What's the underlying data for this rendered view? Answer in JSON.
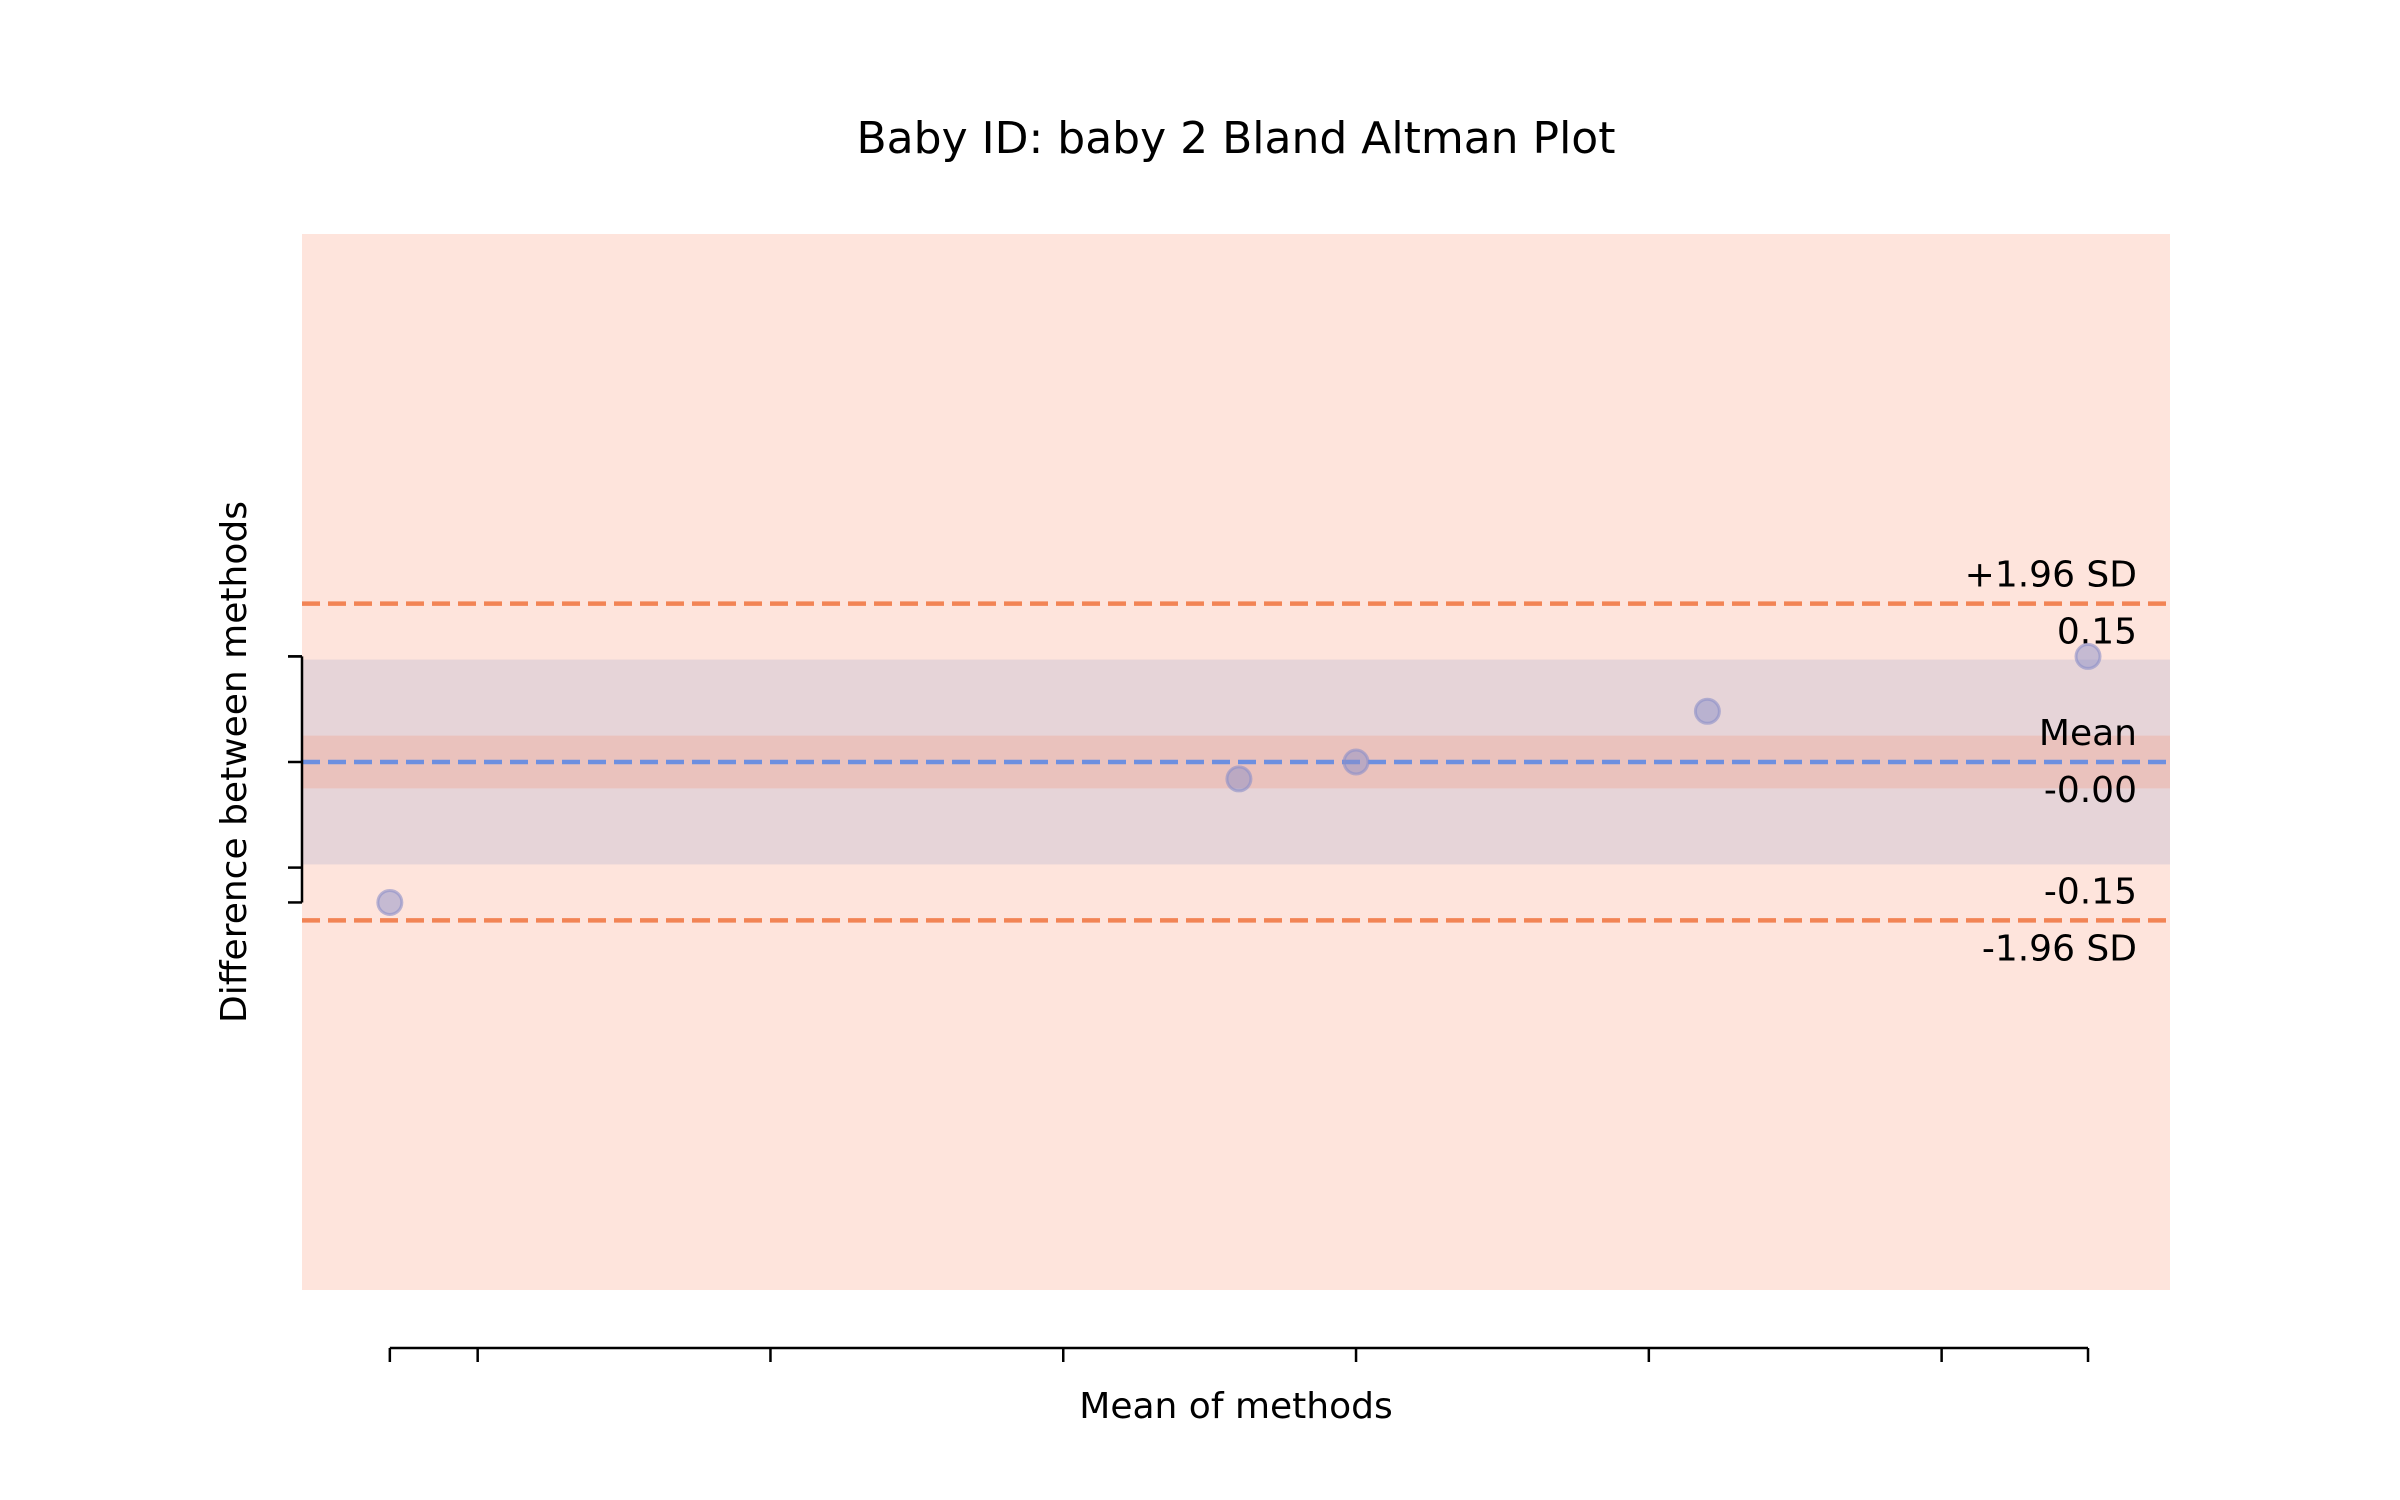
{
  "chart_data": {
    "type": "scatter",
    "title": "Baby ID: baby 2 Bland Altman Plot",
    "xlabel": "Mean of methods",
    "ylabel": "Difference between methods",
    "xlim": [
      -0.3,
      6.08
    ],
    "ylim": [
      -0.5,
      0.5
    ],
    "xticks": [
      0.0,
      0.3,
      1.3,
      2.3,
      3.3,
      4.3,
      5.3,
      5.8
    ],
    "yticks": [
      -0.1,
      0.0,
      0.1
    ],
    "points": [
      {
        "x": 0.0,
        "y": -0.133
      },
      {
        "x": 2.9,
        "y": -0.016
      },
      {
        "x": 3.3,
        "y": 0.0
      },
      {
        "x": 4.5,
        "y": 0.048
      },
      {
        "x": 5.8,
        "y": 0.1
      }
    ],
    "mean_line": {
      "value": -0.0,
      "label": "Mean",
      "value_label": "-0.00"
    },
    "upper_loa": {
      "value": 0.15,
      "label": "+1.96 SD",
      "value_label": "0.15"
    },
    "lower_loa": {
      "value": -0.15,
      "label": "-1.96 SD",
      "value_label": "-0.15"
    },
    "bands": {
      "outer": [
        -0.5,
        0.5
      ],
      "limits_ci": [
        -0.097,
        0.097
      ],
      "mean_ci": [
        -0.025,
        0.025
      ]
    },
    "colors": {
      "background_band": "#fee4dc",
      "limits_band": "#e6d4d8",
      "mean_band": "#eac2bd",
      "loa_line": "#f28455",
      "mean_line": "#6d8fe0",
      "point": "#8c8fc8"
    },
    "grid": false,
    "legend": "none"
  }
}
